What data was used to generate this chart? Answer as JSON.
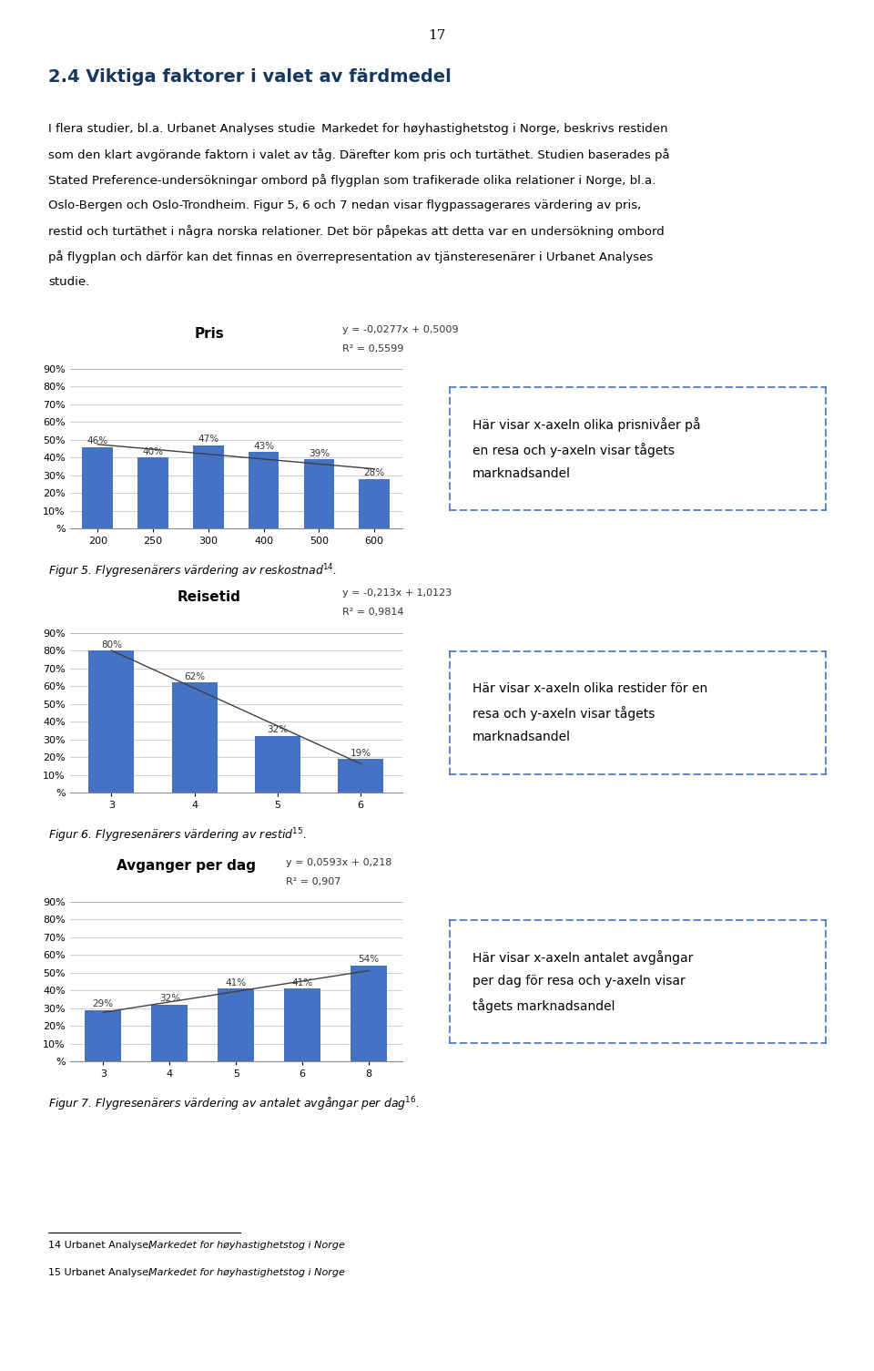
{
  "page_title": "17",
  "section_title": "2.4 Viktiga faktorer i valet av färdmedel",
  "body_lines": [
    [
      "normal",
      "I flera studier, bl.a. Urbanet Analyses studie "
    ],
    [
      "italic",
      "Markedet for høyhastighetstog i Norge"
    ],
    [
      "normal",
      ", beskrivs restiden\nsom den klart avgörande faktorn i valet av tåg. Därefter kom pris och turtäthet. Studien baserades på\nStated Preference-undersökningar ombord på flygplan som trafikerade olika relationer i Norge, bl.a.\nOslo-Bergen och Oslo-Trondheim. Figur 5, 6 och 7 nedan visar flygpassagerares värdering av pris,\nrestid och turtäthet i några norska relationer. Det bör påpekas att detta var en undersökning ombord\npå flygplan och därför kan det finnas en överrepresentation av tjänsteresenärer i Urbanet Analyses\nstudie."
    ]
  ],
  "chart1": {
    "title": "Pris",
    "equation": "y = -0,0277x + 0,5009",
    "r_squared": "R² = 0,5599",
    "x_values": [
      200,
      250,
      300,
      400,
      500,
      600
    ],
    "y_values": [
      0.46,
      0.4,
      0.47,
      0.43,
      0.39,
      0.28
    ],
    "labels": [
      "46%",
      "40%",
      "47%",
      "43%",
      "39%",
      "28%"
    ],
    "y_max": 0.9,
    "y_ticks": [
      0.0,
      0.1,
      0.2,
      0.3,
      0.4,
      0.5,
      0.6,
      0.7,
      0.8,
      0.9
    ],
    "y_tick_labels": [
      "%",
      "10%",
      "20%",
      "30%",
      "40%",
      "50%",
      "60%",
      "70%",
      "80%",
      "90%"
    ],
    "fig_caption": "Figur 5. Flygresenärers värdering av reskostnad",
    "fig_footnote": "14",
    "bar_color": "#4472C4",
    "trend_color": "#404040",
    "has_top_border": true
  },
  "chart2": {
    "title": "Reisetid",
    "equation": "y = -0,213x + 1,0123",
    "r_squared": "R² = 0,9814",
    "x_values": [
      3,
      4,
      5,
      6
    ],
    "y_values": [
      0.8,
      0.62,
      0.32,
      0.19
    ],
    "labels": [
      "80%",
      "62%",
      "32%",
      "19%"
    ],
    "y_max": 0.9,
    "y_ticks": [
      0.0,
      0.1,
      0.2,
      0.3,
      0.4,
      0.5,
      0.6,
      0.7,
      0.8,
      0.9
    ],
    "y_tick_labels": [
      "%",
      "10%",
      "20%",
      "30%",
      "40%",
      "50%",
      "60%",
      "70%",
      "80%",
      "90%"
    ],
    "fig_caption": "Figur 6. Flygresenärers värdering av restid",
    "fig_footnote": "15",
    "bar_color": "#4472C4",
    "trend_color": "#404040",
    "has_top_border": true
  },
  "chart3": {
    "title": "Avganger per dag",
    "equation": "y = 0,0593x + 0,218",
    "r_squared": "R² = 0,907",
    "x_values": [
      3,
      4,
      5,
      6,
      8
    ],
    "y_values": [
      0.29,
      0.32,
      0.41,
      0.41,
      0.54
    ],
    "labels": [
      "29%",
      "32%",
      "41%",
      "41%",
      "54%"
    ],
    "y_max": 0.9,
    "y_ticks": [
      0.0,
      0.1,
      0.2,
      0.3,
      0.4,
      0.5,
      0.6,
      0.7,
      0.8,
      0.9
    ],
    "y_tick_labels": [
      "%",
      "10%",
      "20%",
      "30%",
      "40%",
      "50%",
      "60%",
      "70%",
      "80%",
      "90%"
    ],
    "fig_caption": "Figur 7. Flygresenärers värdering av antalet avgångar per dag",
    "fig_footnote": "16",
    "bar_color": "#4472C4",
    "trend_color": "#404040",
    "has_top_border": true
  },
  "annotation1": {
    "text": "Här visar x-axeln olika prisnivåer på\nen resa och y-axeln visar tågets\nmarknadsandel",
    "border_color": "#4472C4"
  },
  "annotation2": {
    "text": "Här visar x-axeln olika restider för en\nresa och y-axeln visar tågets\nmarknadsandel",
    "border_color": "#4472C4"
  },
  "annotation3": {
    "text": "Här visar x-axeln antalet avgångar\nper dag för resa och y-axeln visar\ntågets marknadsandel",
    "border_color": "#4472C4"
  },
  "footnotes": [
    [
      "normal",
      "14 Urbanet Analyse, "
    ],
    [
      "italic",
      "Markedet for høyhastighetstog i Norge"
    ],
    [
      "normal",
      "15 Urbanet Analyse, "
    ],
    [
      "italic",
      "Markedet for høyhastighetstog i Norge"
    ]
  ],
  "bg_color": "#FFFFFF",
  "text_color": "#000000",
  "title_color": "#17375E"
}
